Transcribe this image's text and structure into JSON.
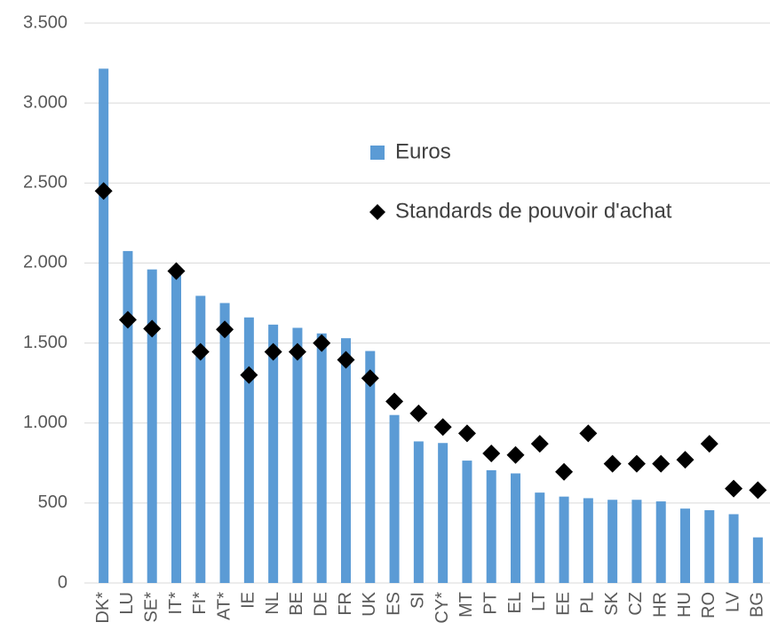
{
  "chart_data": {
    "type": "bar",
    "categories": [
      "DK*",
      "LU",
      "SE*",
      "IT*",
      "FI*",
      "AT*",
      "IE",
      "NL",
      "BE",
      "DE",
      "FR",
      "UK",
      "ES",
      "SI",
      "CY*",
      "MT",
      "PT",
      "EL",
      "LT",
      "EE",
      "PL",
      "SK",
      "CZ",
      "HR",
      "HU",
      "RO",
      "LV",
      "BG"
    ],
    "series": [
      {
        "name": "Euros",
        "type": "bar",
        "color": "#5b9bd5",
        "values": [
          3215,
          2075,
          1960,
          1930,
          1795,
          1750,
          1660,
          1615,
          1595,
          1560,
          1530,
          1450,
          1050,
          885,
          875,
          765,
          705,
          685,
          565,
          540,
          530,
          520,
          520,
          510,
          465,
          455,
          430,
          285
        ]
      },
      {
        "name": "Standards de pouvoir d'achat",
        "type": "scatter",
        "marker": "diamond",
        "color": "#000000",
        "values": [
          2450,
          1645,
          1590,
          1950,
          1445,
          1585,
          1300,
          1445,
          1445,
          1500,
          1395,
          1280,
          1135,
          1060,
          975,
          935,
          810,
          800,
          870,
          695,
          935,
          745,
          745,
          745,
          770,
          870,
          590,
          580
        ]
      }
    ],
    "ylim": [
      0,
      3500
    ],
    "yticks": [
      0,
      500,
      {
        "value": 1000,
        "label": "1.000"
      },
      {
        "value": 1500,
        "label": "1.500"
      },
      {
        "value": 2000,
        "label": "2.000"
      },
      {
        "value": 2500,
        "label": "2.500"
      },
      {
        "value": 3000,
        "label": "3.000"
      },
      {
        "value": 3500,
        "label": "3.500"
      }
    ],
    "grid": true,
    "legend_position": "upper right"
  }
}
